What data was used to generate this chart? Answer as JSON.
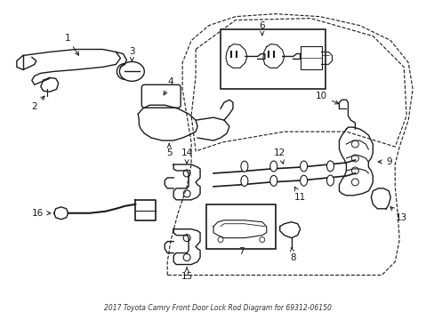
{
  "title": "2017 Toyota Camry Front Door Lock Rod Diagram for 69312-06150",
  "bg": "#ffffff",
  "lc": "#1a1a1a",
  "figw": 4.89,
  "figh": 3.6,
  "dpi": 100
}
